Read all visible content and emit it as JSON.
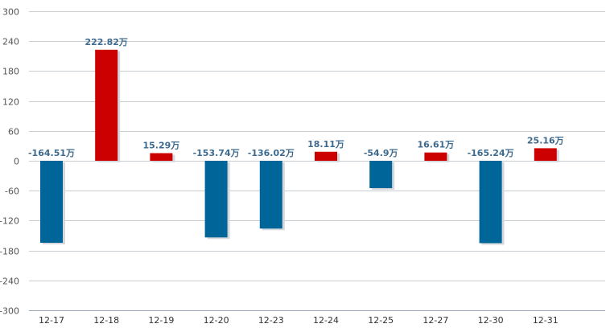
{
  "chart_data": {
    "type": "bar",
    "title": "",
    "xlabel": "",
    "ylabel": "",
    "ylim": [
      -300,
      300
    ],
    "yticks": [
      300,
      240,
      180,
      120,
      60,
      0,
      -60,
      -120,
      -180,
      -240,
      -300
    ],
    "grid": true,
    "legend": "none",
    "categories": [
      "12-17",
      "12-18",
      "12-19",
      "12-20",
      "12-23",
      "12-24",
      "12-25",
      "12-27",
      "12-30",
      "12-31"
    ],
    "values": [
      -164.51,
      222.82,
      15.29,
      -153.74,
      -136.02,
      18.11,
      -54.9,
      16.61,
      -165.24,
      25.16
    ],
    "data_labels": [
      "-164.51万",
      "222.82万",
      "15.29万",
      "-153.74万",
      "-136.02万",
      "18.11万",
      "-54.9万",
      "16.61万",
      "-165.24万",
      "25.16万"
    ],
    "colors": {
      "positive": "#cc0000",
      "negative": "#006699"
    }
  }
}
